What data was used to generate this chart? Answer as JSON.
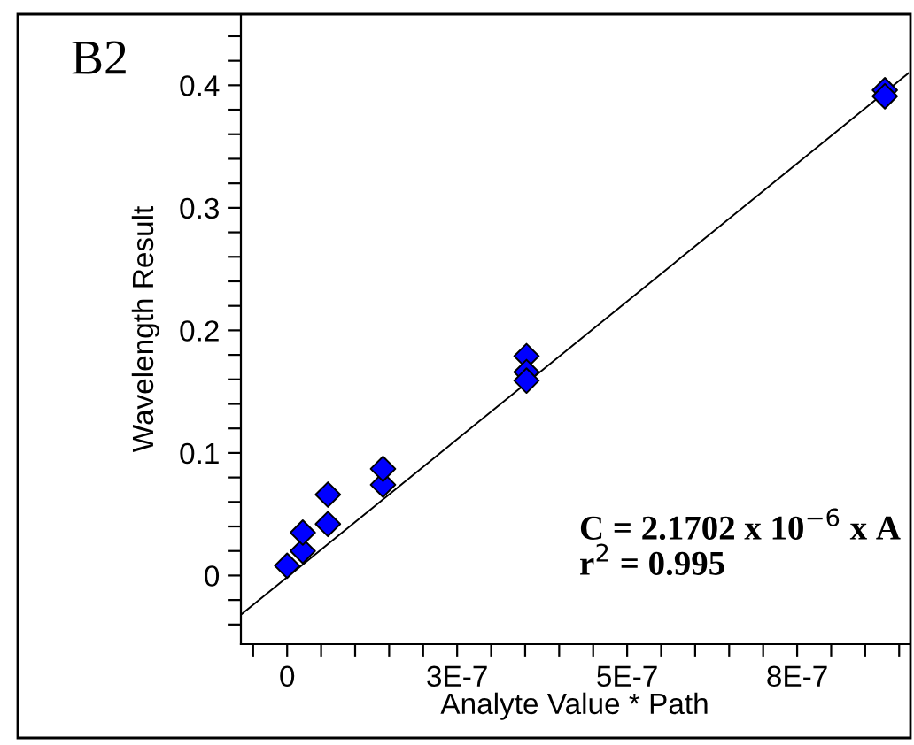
{
  "chart_data": {
    "type": "scatter",
    "xlabel": "Analyte Value * Path",
    "ylabel": "Wavelength Result",
    "annotations": [
      "B2",
      "C = 2.1702 x 10$^{−6}$ x A",
      "r$^{2}$ = 0.995"
    ],
    "grid": false,
    "legend": false,
    "series": [
      {
        "marker": "diamond",
        "color": "#0000ff",
        "x": [
          0,
          2.3e-08,
          2.3e-08,
          6e-08,
          6e-08,
          1.41e-07,
          1.41e-07,
          3.52e-07,
          3.52e-07,
          3.52e-07,
          8.79e-07,
          8.79e-07
        ],
        "values": [
          0.008,
          0.02,
          0.035,
          0.042,
          0.066,
          0.074,
          0.087,
          0.179,
          0.166,
          0.159,
          0.396,
          0.391
        ]
      },
      {
        "type": "line",
        "color": "#000000",
        "x": [
          -6.8e-08,
          9.14e-07
        ],
        "values": [
          -0.032,
          0.41
        ]
      }
    ],
    "xlim": [
      -6.8e-08,
      9.14e-07
    ],
    "xticks": [
      {
        "value": -5e-08,
        "label": null
      },
      {
        "value": 0,
        "label": "0"
      },
      {
        "value": 5e-08,
        "label": null
      },
      {
        "value": 1e-07,
        "label": null
      },
      {
        "value": 1.5e-07,
        "label": null
      },
      {
        "value": 2e-07,
        "label": null
      },
      {
        "value": 2.5e-07,
        "label": "3E-7"
      },
      {
        "value": 3e-07,
        "label": null
      },
      {
        "value": 3.5e-07,
        "label": null
      },
      {
        "value": 4e-07,
        "label": null
      },
      {
        "value": 4.5e-07,
        "label": null
      },
      {
        "value": 5e-07,
        "label": "5E-7"
      },
      {
        "value": 5.5e-07,
        "label": null
      },
      {
        "value": 6e-07,
        "label": null
      },
      {
        "value": 6.5e-07,
        "label": null
      },
      {
        "value": 7e-07,
        "label": null
      },
      {
        "value": 7.5e-07,
        "label": "8E-7"
      },
      {
        "value": 8e-07,
        "label": null
      },
      {
        "value": 8.5e-07,
        "label": null
      },
      {
        "value": 9e-07,
        "label": null
      }
    ],
    "ylim": [
      -0.056,
      0.458
    ],
    "yticks": [
      {
        "value": -0.04,
        "label": null
      },
      {
        "value": -0.02,
        "label": null
      },
      {
        "value": 0,
        "label": "0"
      },
      {
        "value": 0.02,
        "label": null
      },
      {
        "value": 0.04,
        "label": null
      },
      {
        "value": 0.06,
        "label": null
      },
      {
        "value": 0.08,
        "label": null
      },
      {
        "value": 0.1,
        "label": "0.1"
      },
      {
        "value": 0.12,
        "label": null
      },
      {
        "value": 0.14,
        "label": null
      },
      {
        "value": 0.16,
        "label": null
      },
      {
        "value": 0.18,
        "label": null
      },
      {
        "value": 0.2,
        "label": "0.2"
      },
      {
        "value": 0.22,
        "label": null
      },
      {
        "value": 0.24,
        "label": null
      },
      {
        "value": 0.26,
        "label": null
      },
      {
        "value": 0.28,
        "label": null
      },
      {
        "value": 0.3,
        "label": "0.3"
      },
      {
        "value": 0.32,
        "label": null
      },
      {
        "value": 0.34,
        "label": null
      },
      {
        "value": 0.36,
        "label": null
      },
      {
        "value": 0.38,
        "label": null
      },
      {
        "value": 0.4,
        "label": "0.4"
      },
      {
        "value": 0.42,
        "label": null
      },
      {
        "value": 0.44,
        "label": null
      }
    ]
  }
}
